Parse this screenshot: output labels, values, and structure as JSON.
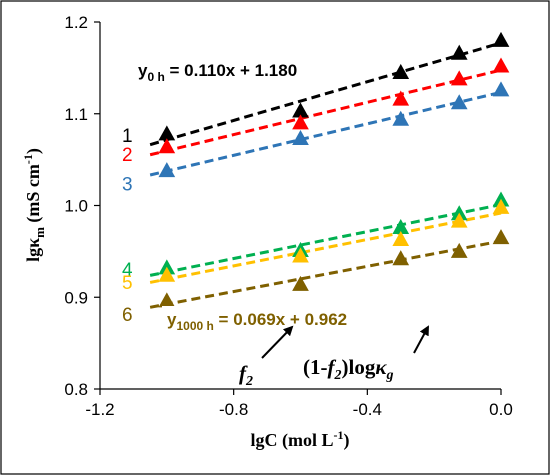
{
  "chart_data": {
    "type": "scatter",
    "title": "",
    "xlabel": "lgC (mol L",
    "xlabel_sup": "-1",
    "xlabel_tail": ")",
    "ylabel_main": "lgκ",
    "ylabel_sub": "m",
    "ylabel_unit": " (mS cm",
    "ylabel_sup": "-1",
    "ylabel_tail": ")",
    "xlim": [
      -1.2,
      0.0
    ],
    "ylim": [
      0.8,
      1.2
    ],
    "xticks": [
      "-1.2",
      "-0.8",
      "-0.4",
      "0.0"
    ],
    "xtick_values": [
      -1.2,
      -0.8,
      -0.4,
      0.0
    ],
    "yticks": [
      "0.8",
      "0.9",
      "1.0",
      "1.1",
      "1.2"
    ],
    "ytick_values": [
      0.8,
      0.9,
      1.0,
      1.1,
      1.2
    ],
    "grid": false,
    "marker": "triangle",
    "series": [
      {
        "label": "1",
        "color": "#000000",
        "x": [
          -1.0,
          -0.6,
          -0.3,
          -0.125,
          0.0
        ],
        "y": [
          1.078,
          1.103,
          1.145,
          1.166,
          1.18
        ]
      },
      {
        "label": "2",
        "color": "#ff0000",
        "x": [
          -1.0,
          -0.6,
          -0.3,
          -0.125,
          0.0
        ],
        "y": [
          1.064,
          1.09,
          1.116,
          1.138,
          1.152
        ]
      },
      {
        "label": "3",
        "color": "#2e75b6",
        "x": [
          -1.0,
          -0.6,
          -0.3,
          -0.125,
          0.0
        ],
        "y": [
          1.038,
          1.073,
          1.094,
          1.112,
          1.126
        ]
      },
      {
        "label": "4",
        "color": "#00b050",
        "x": [
          -1.0,
          -0.6,
          -0.3,
          -0.125,
          0.0
        ],
        "y": [
          0.932,
          0.951,
          0.976,
          0.991,
          1.006
        ]
      },
      {
        "label": "5",
        "color": "#ffc000",
        "x": [
          -1.0,
          -0.6,
          -0.3,
          -0.125,
          0.0
        ],
        "y": [
          0.924,
          0.945,
          0.963,
          0.983,
          0.998
        ]
      },
      {
        "label": "6",
        "color": "#7f6000",
        "x": [
          -1.0,
          -0.6,
          -0.3,
          -0.125,
          0.0
        ],
        "y": [
          0.896,
          0.914,
          0.942,
          0.95,
          0.965
        ]
      }
    ],
    "equations": [
      {
        "prefix": "y",
        "sub": "0 h",
        "body": " = 0.110x + 1.180",
        "color": "#000000"
      },
      {
        "prefix": "y",
        "sub": "1000 h",
        "body": " = 0.069x + 0.962",
        "color": "#7f6000"
      }
    ],
    "annotations": [
      {
        "main": "f",
        "sub": "2",
        "tail": ""
      },
      {
        "main": "(1-",
        "mid": "f",
        "sub": "2",
        "tail": ")log",
        "kappa": "κ",
        "ksub": "g"
      }
    ]
  }
}
